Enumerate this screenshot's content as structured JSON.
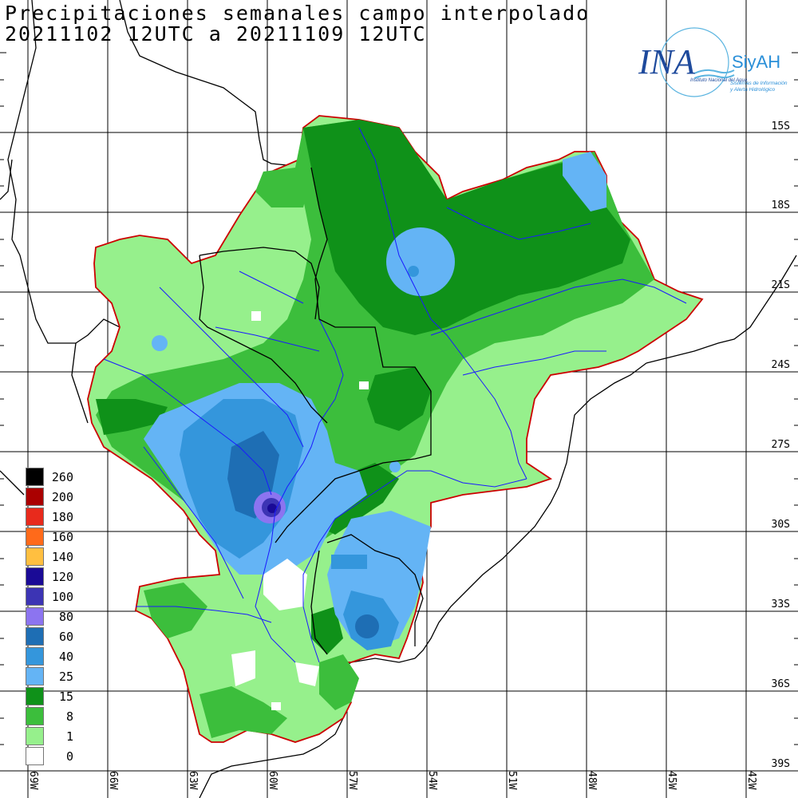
{
  "title": {
    "line1": "Precipitaciones semanales campo interpolado",
    "line2": "20211102 12UTC a 20211109 12UTC"
  },
  "legend": [
    {
      "value": "260",
      "color": "#000000"
    },
    {
      "value": "200",
      "color": "#aa0000"
    },
    {
      "value": "180",
      "color": "#e82a1c"
    },
    {
      "value": "160",
      "color": "#ff6a1a"
    },
    {
      "value": "140",
      "color": "#ffbf40"
    },
    {
      "value": "120",
      "color": "#1a0a96"
    },
    {
      "value": "100",
      "color": "#3c34b4"
    },
    {
      "value": "80",
      "color": "#8c74f0"
    },
    {
      "value": "60",
      "color": "#1e6eb4"
    },
    {
      "value": "40",
      "color": "#3496dc"
    },
    {
      "value": "25",
      "color": "#64b4f5"
    },
    {
      "value": "15",
      "color": "#0f9119"
    },
    {
      "value": "8",
      "color": "#3cbe3c"
    },
    {
      "value": "1",
      "color": "#96f08c"
    },
    {
      "value": "0",
      "color": "#ffffff"
    }
  ],
  "latitude_labels": [
    "15S",
    "18S",
    "21S",
    "24S",
    "27S",
    "30S",
    "33S",
    "36S",
    "39S"
  ],
  "longitude_labels": [
    "69W",
    "66W",
    "63W",
    "60W",
    "57W",
    "54W",
    "51W",
    "48W",
    "45W",
    "42W"
  ],
  "logo": {
    "brand": "INA",
    "system": "SiyAH",
    "institute": "Instituto Nacional del Agua",
    "tagline_1": "Sistemas de Información",
    "tagline_2": "y Alerta Hidrológico"
  },
  "colors": {
    "basin_outline": "#cc0000",
    "rivers": "#1a1aff",
    "borders": "#000000",
    "grid": "#000000"
  }
}
